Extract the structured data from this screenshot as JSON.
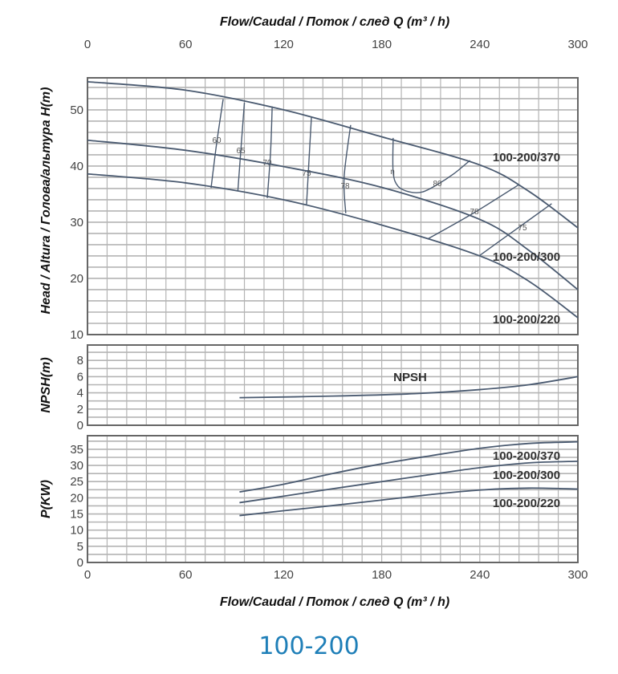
{
  "model_title": "100-200",
  "colors": {
    "curve": "#4a5a70",
    "grid": "#b4b4b4",
    "frame": "#666666",
    "model_title": "#1f7fb8"
  },
  "chart_data": [
    {
      "type": "line",
      "name": "head",
      "x_title_top": "Flow/Caudal  /  Поток / след   Q (m³ / h)",
      "ylabel": "Head / Altura  /  Голова/альтура H(m)",
      "xlim": [
        0,
        300
      ],
      "ylim": [
        10,
        55.7
      ],
      "x_ticks": [
        0,
        60,
        120,
        180,
        240,
        300
      ],
      "y_ticks": [
        10,
        20,
        30,
        40,
        50
      ],
      "grid": true,
      "series": [
        {
          "name": "100-200/370",
          "x": [
            0,
            60,
            120,
            180,
            240,
            270,
            300
          ],
          "y": [
            55,
            53.5,
            50,
            45.2,
            40.2,
            35.5,
            29
          ]
        },
        {
          "name": "100-200/300",
          "x": [
            0,
            60,
            120,
            180,
            240,
            270,
            300
          ],
          "y": [
            44.6,
            42.8,
            39.9,
            36.2,
            30.5,
            25,
            18
          ]
        },
        {
          "name": "100-200/220",
          "x": [
            0,
            60,
            120,
            180,
            240,
            270,
            300
          ],
          "y": [
            38.6,
            37,
            34,
            29.5,
            24,
            19.5,
            13
          ]
        }
      ],
      "efficiency_symbol": "η",
      "efficiency_lines": [
        {
          "label": "60",
          "x": [
            83,
            79,
            75.6
          ],
          "y": [
            51.9,
            44,
            36.1
          ]
        },
        {
          "label": "65",
          "x": [
            96,
            94,
            92
          ],
          "y": [
            51.3,
            43.5,
            35.6
          ]
        },
        {
          "label": "70",
          "x": [
            113,
            112,
            110
          ],
          "y": [
            50.6,
            42.5,
            34.3
          ]
        },
        {
          "label": "75",
          "x": [
            137,
            135.5,
            134
          ],
          "y": [
            48.7,
            41,
            33.1
          ]
        },
        {
          "label": "78",
          "x": [
            161,
            157,
            158
          ],
          "y": [
            47.3,
            38,
            31.6
          ]
        },
        {
          "label": "80",
          "x": [
            187,
            187,
            190,
            197,
            205,
            214,
            224,
            234
          ],
          "y": [
            45,
            38.9,
            36.4,
            35.4,
            35.4,
            36.7,
            38.6,
            41
          ]
        },
        {
          "label": "78",
          "x": [
            208,
            236,
            264
          ],
          "y": [
            27,
            31.6,
            36.7
          ]
        },
        {
          "label": "75",
          "x": [
            240,
            262,
            284
          ],
          "y": [
            24.1,
            28.7,
            33.3
          ]
        }
      ]
    },
    {
      "type": "line",
      "name": "npsh",
      "ylabel": "NPSH(m)",
      "xlim": [
        0,
        300
      ],
      "ylim": [
        0,
        9.9
      ],
      "y_ticks": [
        0,
        2,
        4,
        6,
        8
      ],
      "grid": true,
      "series": [
        {
          "name": "NPSH",
          "x": [
            93,
            150,
            200,
            240,
            270,
            300
          ],
          "y": [
            3.4,
            3.6,
            3.9,
            4.4,
            5,
            6
          ]
        }
      ]
    },
    {
      "type": "line",
      "name": "power",
      "ylabel": "P(KW)",
      "x_title_bottom": "Flow/Caudal  /  Поток / след   Q (m³ / h)",
      "xlim": [
        0,
        300
      ],
      "ylim": [
        0,
        39.2
      ],
      "x_ticks": [
        0,
        60,
        120,
        180,
        240,
        300
      ],
      "y_ticks": [
        0,
        5,
        10,
        15,
        20,
        25,
        30,
        35
      ],
      "grid": true,
      "series": [
        {
          "name": "100-200/370",
          "x": [
            93,
            120,
            150,
            180,
            210,
            240,
            270,
            300
          ],
          "y": [
            21.8,
            24.2,
            27.5,
            30.5,
            33,
            35.3,
            36.8,
            37.3
          ]
        },
        {
          "name": "100-200/300",
          "x": [
            93,
            120,
            150,
            180,
            210,
            240,
            270,
            300
          ],
          "y": [
            18.5,
            20.5,
            22.8,
            25,
            27.2,
            29.3,
            30.8,
            31.3
          ]
        },
        {
          "name": "100-200/220",
          "x": [
            93,
            120,
            150,
            180,
            210,
            240,
            270,
            300
          ],
          "y": [
            14.5,
            16,
            17.6,
            19.3,
            21,
            22.4,
            23,
            22.7
          ]
        }
      ]
    }
  ]
}
